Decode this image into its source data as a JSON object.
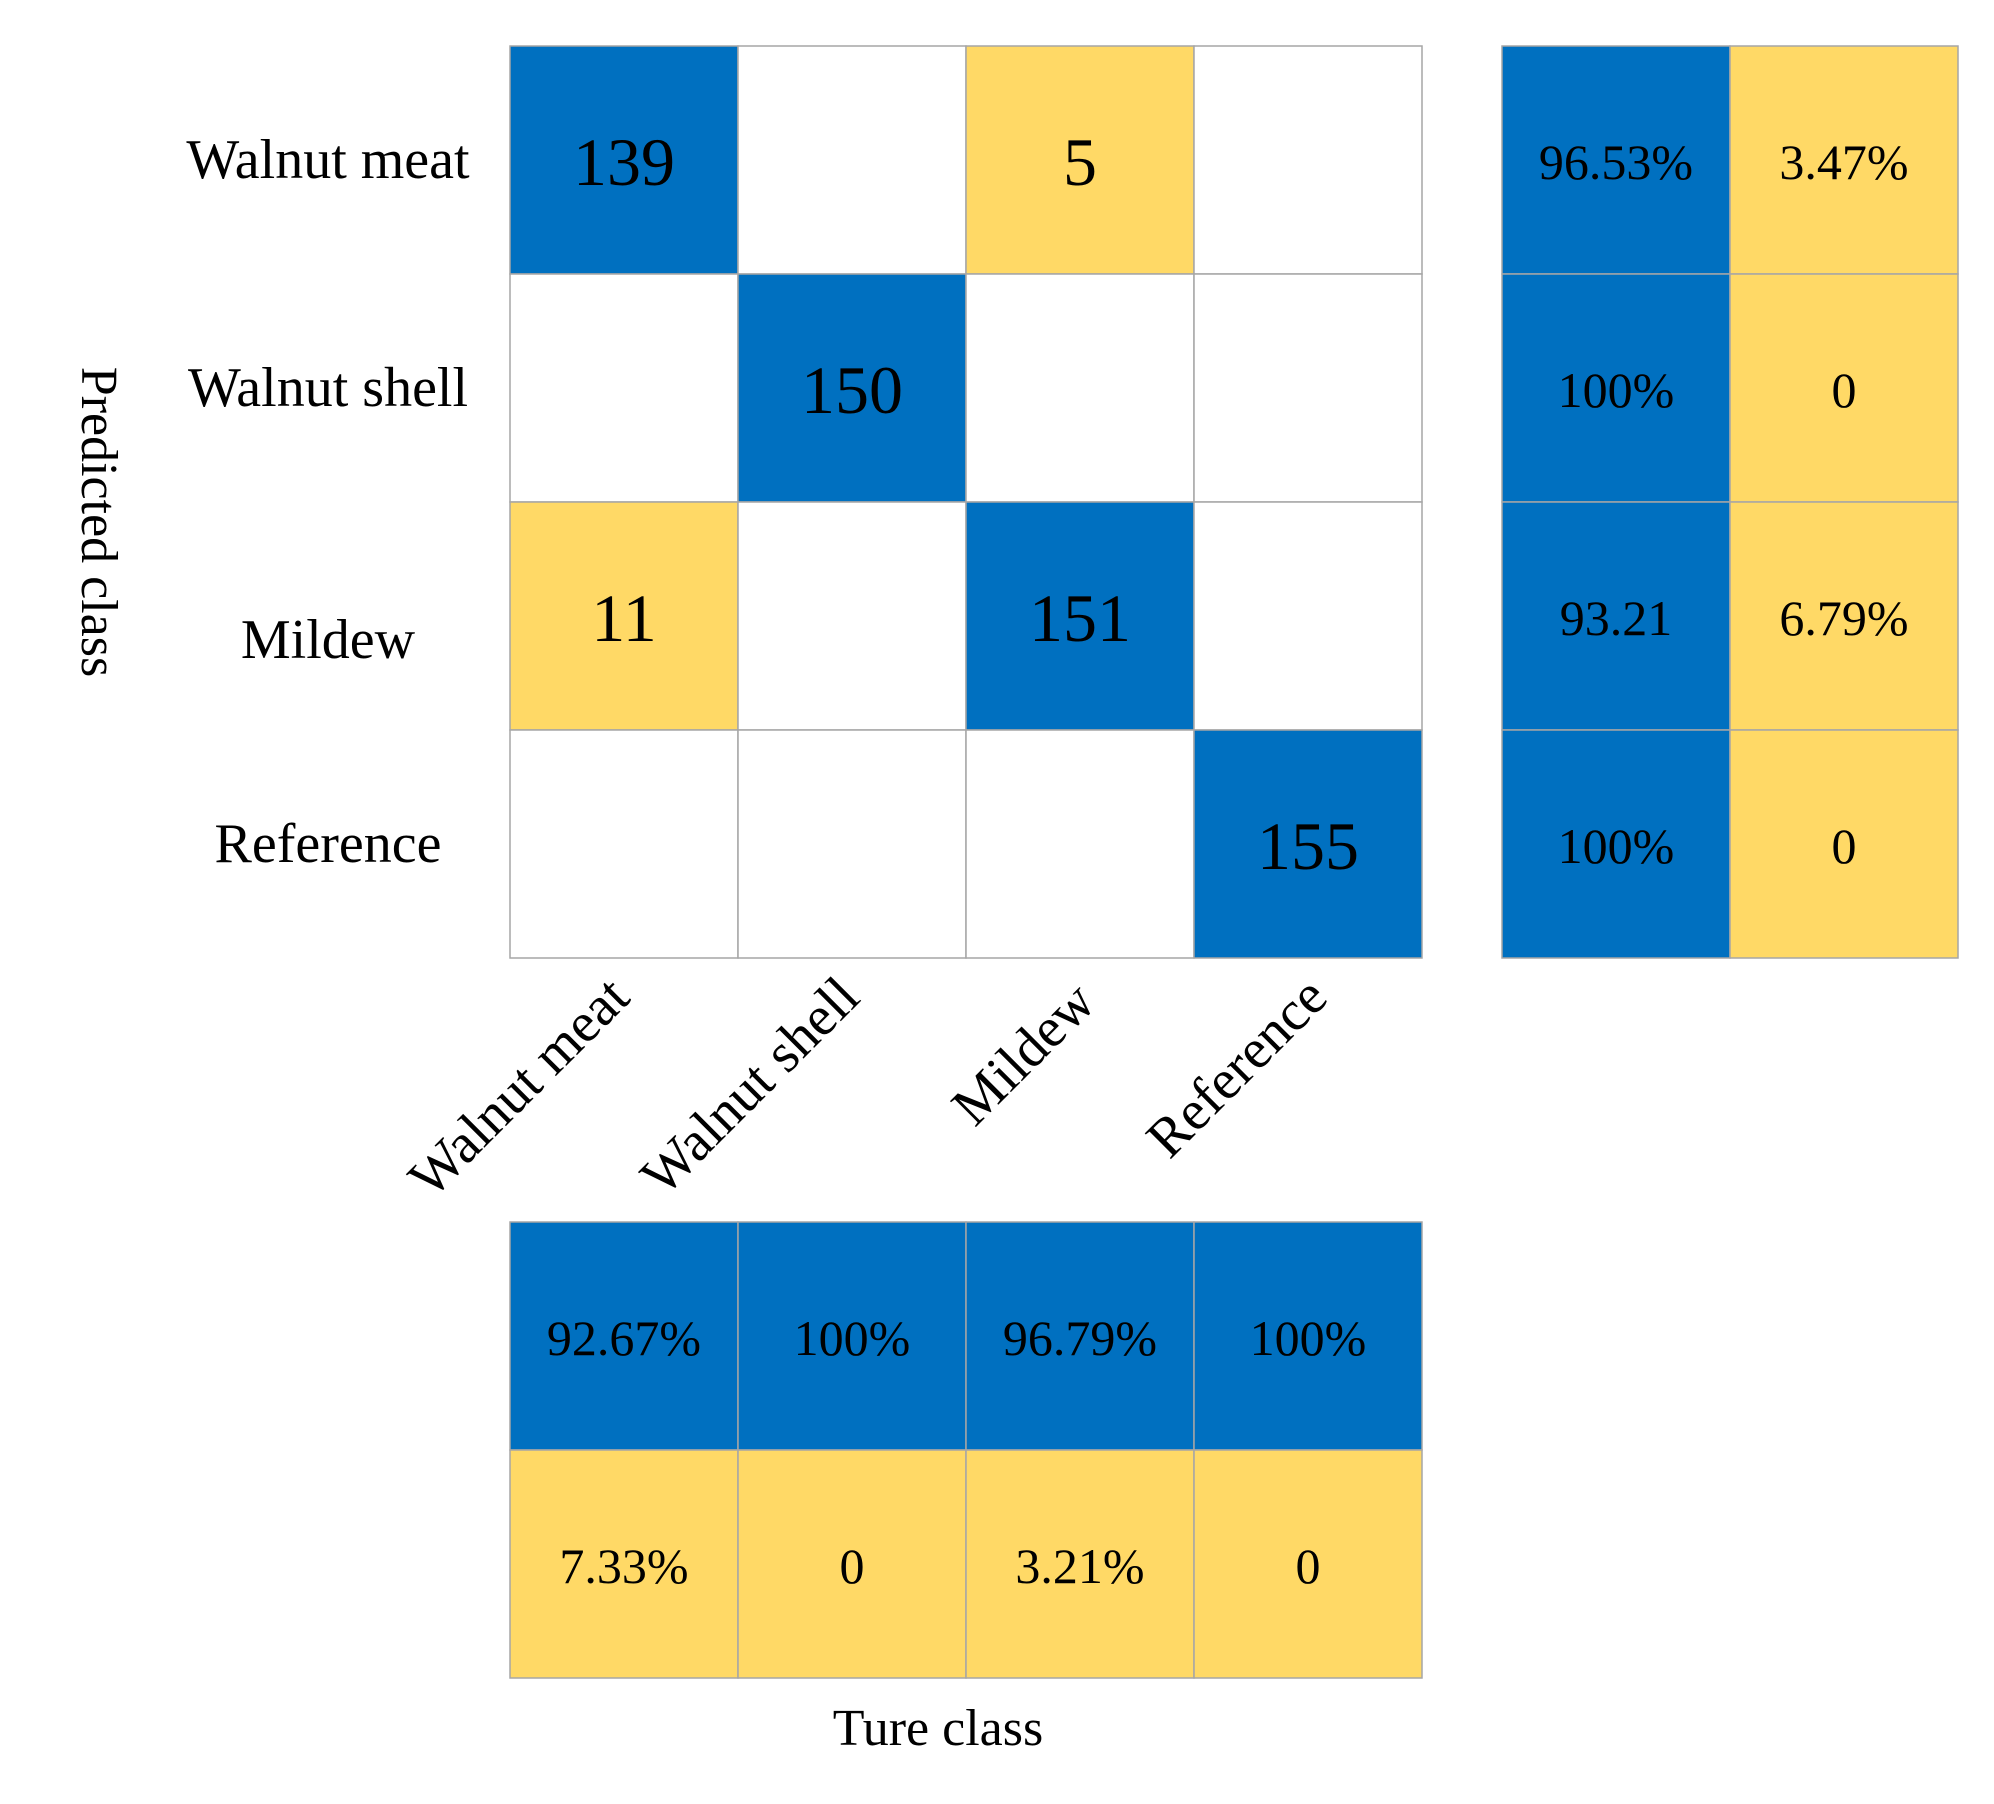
{
  "chart_data": {
    "type": "heatmap",
    "title": "",
    "xlabel": "Ture class",
    "ylabel": "Predicted class",
    "predicted_classes": [
      "Walnut meat",
      "Walnut shell",
      "Mildew",
      "Reference"
    ],
    "true_classes": [
      "Walnut meat",
      "Walnut shell",
      "Mildew",
      "Reference"
    ],
    "matrix": [
      [
        139,
        null,
        5,
        null
      ],
      [
        null,
        150,
        null,
        null
      ],
      [
        11,
        null,
        151,
        null
      ],
      [
        null,
        null,
        null,
        155
      ]
    ],
    "row_summary": [
      [
        "96.53%",
        "3.47%"
      ],
      [
        "100%",
        "0"
      ],
      [
        "93.21",
        "6.79%"
      ],
      [
        "100%",
        "0"
      ]
    ],
    "column_summary": {
      "correct": [
        "92.67%",
        "100%",
        "96.79%",
        "100%"
      ],
      "incorrect": [
        "7.33%",
        "0",
        "3.21%",
        "0"
      ]
    },
    "colors": {
      "correct": "#0070C0",
      "incorrect": "#FFD966",
      "empty": "#FFFFFF",
      "grid": "#A6A6A6"
    }
  }
}
